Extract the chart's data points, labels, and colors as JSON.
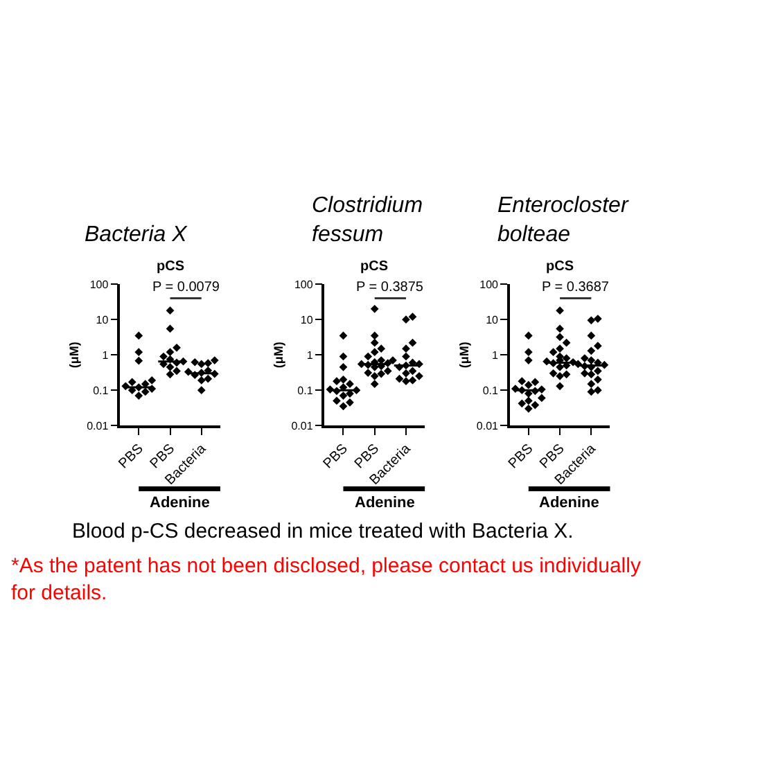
{
  "chart_data": [
    {
      "type": "scatter",
      "title": "Bacteria X",
      "subtitle": "pCS",
      "ylabel": "(μM)",
      "categories": [
        "PBS",
        "PBS",
        "Bacteria"
      ],
      "log": true,
      "ylim": [
        0.01,
        100
      ],
      "yticks": [
        0.01,
        0.1,
        1,
        10,
        100
      ],
      "marker": "diamond",
      "annotations": [
        "P = 0.0079",
        "Adenine",
        "Blood p-CS decreased in mice treated with Bacteria X.",
        "*As the patent has not been disclosed, please contact us individually for details."
      ],
      "ref_lines": [
        {
          "axis": "y",
          "value": 0.12
        },
        {
          "axis": "y",
          "value": 0.65
        },
        {
          "axis": "y",
          "value": 0.3
        }
      ],
      "series": [
        {
          "color": "#000000",
          "values": [
            3.5,
            18,
            0.7
          ]
        },
        {
          "color": "#000000",
          "values": [
            1.2,
            5.5,
            0.62
          ]
        },
        {
          "color": "#000000",
          "values": [
            0.68,
            1.6,
            0.58
          ]
        },
        {
          "color": "#000000",
          "values": [
            0.19,
            1.2,
            0.55
          ]
        },
        {
          "color": "#000000",
          "values": [
            0.17,
            0.9,
            0.36
          ]
        },
        {
          "color": "#000000",
          "values": [
            0.15,
            0.75,
            0.33
          ]
        },
        {
          "color": "#000000",
          "values": [
            0.13,
            0.65,
            0.31
          ]
        },
        {
          "color": "#000000",
          "values": [
            0.12,
            0.6,
            0.29
          ]
        },
        {
          "color": "#000000",
          "values": [
            0.11,
            0.55,
            0.27
          ]
        },
        {
          "color": "#000000",
          "values": [
            0.1,
            0.45,
            0.21
          ]
        },
        {
          "color": "#000000",
          "values": [
            0.09,
            0.35,
            0.19
          ]
        },
        {
          "color": "#000000",
          "values": [
            0.07,
            0.28,
            0.1
          ]
        }
      ]
    },
    {
      "type": "scatter",
      "title": "Clostridium fessum",
      "subtitle": "pCS",
      "ylabel": "(μM)",
      "categories": [
        "PBS",
        "PBS",
        "Bacteria"
      ],
      "log": true,
      "ylim": [
        0.01,
        100
      ],
      "yticks": [
        0.01,
        0.1,
        1,
        10,
        100
      ],
      "marker": "diamond",
      "annotations": [
        "P = 0.3875",
        "Adenine"
      ],
      "ref_lines": [
        {
          "axis": "y",
          "value": 0.1
        },
        {
          "axis": "y",
          "value": 0.55
        },
        {
          "axis": "y",
          "value": 0.5
        }
      ],
      "series": [
        {
          "color": "#000000",
          "values": [
            3.5,
            20,
            12
          ]
        },
        {
          "color": "#000000",
          "values": [
            0.9,
            3.5,
            10
          ]
        },
        {
          "color": "#000000",
          "values": [
            0.45,
            2.2,
            2.2
          ]
        },
        {
          "color": "#000000",
          "values": [
            0.2,
            1.5,
            1.5
          ]
        },
        {
          "color": "#000000",
          "values": [
            0.18,
            1.2,
            0.9
          ]
        },
        {
          "color": "#000000",
          "values": [
            0.15,
            0.9,
            0.7
          ]
        },
        {
          "color": "#000000",
          "values": [
            0.12,
            0.7,
            0.6
          ]
        },
        {
          "color": "#000000",
          "values": [
            0.105,
            0.62,
            0.55
          ]
        },
        {
          "color": "#000000",
          "values": [
            0.1,
            0.58,
            0.5
          ]
        },
        {
          "color": "#000000",
          "values": [
            0.095,
            0.55,
            0.45
          ]
        },
        {
          "color": "#000000",
          "values": [
            0.08,
            0.52,
            0.35
          ]
        },
        {
          "color": "#000000",
          "values": [
            0.07,
            0.48,
            0.3
          ]
        },
        {
          "color": "#000000",
          "values": [
            0.05,
            0.45,
            0.25
          ]
        },
        {
          "color": "#000000",
          "values": [
            0.045,
            0.35,
            0.21
          ]
        },
        {
          "color": "#000000",
          "values": [
            0.035,
            0.31,
            0.19
          ]
        },
        {
          "color": "#000000",
          "values": [
            null,
            0.29,
            0.18
          ]
        },
        {
          "color": "#000000",
          "values": [
            null,
            0.25,
            null
          ]
        },
        {
          "color": "#000000",
          "values": [
            null,
            0.15,
            null
          ]
        }
      ]
    },
    {
      "type": "scatter",
      "title": "Enterocloster bolteae",
      "subtitle": "pCS",
      "ylabel": "(μM)",
      "categories": [
        "PBS",
        "PBS",
        "Bacteria"
      ],
      "log": true,
      "ylim": [
        0.01,
        100
      ],
      "yticks": [
        0.01,
        0.1,
        1,
        10,
        100
      ],
      "marker": "diamond",
      "annotations": [
        "P = 0.3687",
        "Adenine"
      ],
      "ref_lines": [
        {
          "axis": "y",
          "value": 0.1
        },
        {
          "axis": "y",
          "value": 0.6
        },
        {
          "axis": "y",
          "value": 0.5
        }
      ],
      "series": [
        {
          "color": "#000000",
          "values": [
            3.5,
            18,
            10.5
          ]
        },
        {
          "color": "#000000",
          "values": [
            1.2,
            5.5,
            9.5
          ]
        },
        {
          "color": "#000000",
          "values": [
            0.7,
            3.2,
            3.5
          ]
        },
        {
          "color": "#000000",
          "values": [
            0.18,
            2.2,
            1.8
          ]
        },
        {
          "color": "#000000",
          "values": [
            0.17,
            1.5,
            1.3
          ]
        },
        {
          "color": "#000000",
          "values": [
            0.14,
            1.2,
            0.8
          ]
        },
        {
          "color": "#000000",
          "values": [
            0.11,
            0.9,
            0.7
          ]
        },
        {
          "color": "#000000",
          "values": [
            0.105,
            0.8,
            0.6
          ]
        },
        {
          "color": "#000000",
          "values": [
            0.1,
            0.7,
            0.55
          ]
        },
        {
          "color": "#000000",
          "values": [
            0.095,
            0.65,
            0.52
          ]
        },
        {
          "color": "#000000",
          "values": [
            0.08,
            0.62,
            0.48
          ]
        },
        {
          "color": "#000000",
          "values": [
            0.06,
            0.58,
            0.45
          ]
        },
        {
          "color": "#000000",
          "values": [
            0.05,
            0.5,
            0.35
          ]
        },
        {
          "color": "#000000",
          "values": [
            0.042,
            0.45,
            0.3
          ]
        },
        {
          "color": "#000000",
          "values": [
            0.038,
            0.3,
            0.28
          ]
        },
        {
          "color": "#000000",
          "values": [
            0.03,
            0.28,
            0.2
          ]
        },
        {
          "color": "#000000",
          "values": [
            null,
            0.25,
            0.15
          ]
        },
        {
          "color": "#000000",
          "values": [
            null,
            0.13,
            0.1
          ]
        },
        {
          "color": "#000000",
          "values": [
            null,
            null,
            0.09
          ]
        }
      ]
    }
  ]
}
